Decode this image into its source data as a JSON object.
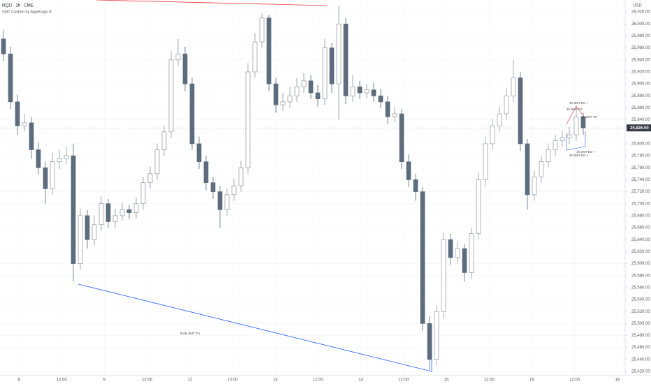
{
  "chart_data": {
    "type": "candlestick",
    "title": "NQ1! · 1h · CME",
    "subtitle": "SMT Custom by AlgoKings ®",
    "y_unit": "USD",
    "up_color": "#ffffff",
    "up_border": "#9598a1",
    "down_color": "#5d6d7e",
    "open": [
      25975,
      25950,
      25870,
      25830,
      25835,
      25790,
      25760,
      25725,
      25770,
      25775,
      25780,
      25600,
      25680,
      25640,
      25665,
      25700,
      25670,
      25680,
      25690,
      25685,
      25700,
      25735,
      25750,
      25790,
      25820,
      25940,
      25950,
      25900,
      25800,
      25770,
      25735,
      25720,
      25690,
      25715,
      25730,
      25760,
      25920,
      25970,
      26010,
      25900,
      25865,
      25870,
      25880,
      25895,
      25905,
      25885,
      25875,
      25960,
      25900,
      26000,
      25880,
      25895,
      25885,
      25890,
      25880,
      25870,
      25845,
      25850,
      25770,
      25740,
      25720,
      25500,
      25440,
      25520,
      25640,
      25610,
      25625,
      25585,
      25650,
      25740,
      25800,
      25830,
      25850,
      25880,
      25910,
      25800,
      25715,
      25745,
      25770,
      25790,
      25805,
      25810,
      25815,
      25845
    ],
    "high": [
      25990,
      25962,
      25882,
      25850,
      25845,
      25802,
      25770,
      25785,
      25790,
      25795,
      25800,
      25692,
      25690,
      25680,
      25712,
      25708,
      25692,
      25702,
      25698,
      25710,
      25745,
      25762,
      25800,
      25830,
      25955,
      25975,
      25962,
      25910,
      25812,
      25780,
      25745,
      25730,
      25725,
      25742,
      25772,
      25935,
      25985,
      26018,
      26015,
      25910,
      25885,
      25895,
      25910,
      25918,
      25915,
      25898,
      25975,
      25968,
      26030,
      26010,
      25915,
      25905,
      25900,
      25902,
      25892,
      25880,
      25862,
      25858,
      25782,
      25750,
      25728,
      25512,
      25530,
      25652,
      25650,
      25638,
      25632,
      25660,
      25752,
      25812,
      25842,
      25862,
      25893,
      25940,
      25920,
      25808,
      25755,
      25780,
      25800,
      25815,
      25822,
      25828,
      25860,
      25852
    ],
    "low": [
      25938,
      25858,
      25815,
      25820,
      25775,
      25748,
      25700,
      25715,
      25758,
      25765,
      25570,
      25590,
      25625,
      25630,
      25655,
      25660,
      25660,
      25672,
      25675,
      25676,
      25690,
      25725,
      25740,
      25780,
      25810,
      25930,
      25888,
      25790,
      25758,
      25722,
      25708,
      25660,
      25680,
      25705,
      25720,
      25750,
      25910,
      25960,
      25888,
      25852,
      25855,
      25860,
      25870,
      25885,
      25875,
      25862,
      25865,
      25885,
      25840,
      25866,
      25870,
      25875,
      25876,
      25870,
      25860,
      25833,
      25836,
      25758,
      25728,
      25705,
      25488,
      25422,
      25430,
      25508,
      25598,
      25600,
      25570,
      25575,
      25640,
      25730,
      25790,
      25820,
      25840,
      25870,
      25788,
      25690,
      25705,
      25735,
      25760,
      25780,
      25795,
      25800,
      25805,
      25815
    ],
    "close": [
      25950,
      25870,
      25830,
      25835,
      25790,
      25760,
      25725,
      25770,
      25775,
      25780,
      25600,
      25680,
      25640,
      25665,
      25700,
      25670,
      25680,
      25690,
      25685,
      25700,
      25735,
      25750,
      25790,
      25820,
      25940,
      25950,
      25900,
      25800,
      25770,
      25735,
      25720,
      25690,
      25715,
      25730,
      25760,
      25920,
      25970,
      26010,
      25900,
      25865,
      25870,
      25880,
      25895,
      25905,
      25885,
      25875,
      25960,
      25900,
      26000,
      25880,
      25895,
      25885,
      25890,
      25880,
      25870,
      25845,
      25850,
      25770,
      25740,
      25720,
      25500,
      25440,
      25520,
      25640,
      25610,
      25625,
      25585,
      25650,
      25740,
      25800,
      25830,
      25850,
      25880,
      25910,
      25800,
      25715,
      25745,
      25770,
      25790,
      25805,
      25810,
      25815,
      25845,
      25826.5
    ],
    "ylim": [
      25413,
      26040
    ],
    "yticks": [
      {
        "value": 25420,
        "label": "25,420.00"
      },
      {
        "value": 25440,
        "label": "25,440.00"
      },
      {
        "value": 25460,
        "label": "25,460.00"
      },
      {
        "value": 25480,
        "label": "25,480.00"
      },
      {
        "value": 25500,
        "label": "25,500.00"
      },
      {
        "value": 25520,
        "label": "25,520.00"
      },
      {
        "value": 25540,
        "label": "25,540.00"
      },
      {
        "value": 25560,
        "label": "25,560.00"
      },
      {
        "value": 25580,
        "label": "25,580.00"
      },
      {
        "value": 25600,
        "label": "25,600.00"
      },
      {
        "value": 25620,
        "label": "25,620.00"
      },
      {
        "value": 25640,
        "label": "25,640.00"
      },
      {
        "value": 25660,
        "label": "25,660.00"
      },
      {
        "value": 25680,
        "label": "25,680.00"
      },
      {
        "value": 25700,
        "label": "25,700.00"
      },
      {
        "value": 25720,
        "label": "25,720.00"
      },
      {
        "value": 25740,
        "label": "25,740.00"
      },
      {
        "value": 25760,
        "label": "25,760.00"
      },
      {
        "value": 25780,
        "label": "25,780.00"
      },
      {
        "value": 25800,
        "label": "25,800.00"
      },
      {
        "value": 25840,
        "label": "25,840.00"
      },
      {
        "value": 25860,
        "label": "25,860.00"
      },
      {
        "value": 25880,
        "label": "25,880.00"
      },
      {
        "value": 25900,
        "label": "25,900.00"
      },
      {
        "value": 25920,
        "label": "25,920.00"
      },
      {
        "value": 25940,
        "label": "25,940.00"
      },
      {
        "value": 25960,
        "label": "25,960.00"
      },
      {
        "value": 25980,
        "label": "25,980.00"
      },
      {
        "value": 26000,
        "label": "26,000.00"
      },
      {
        "value": 26020,
        "label": "26,020.00"
      }
    ],
    "last_price": {
      "value": 25826.5,
      "label": "25,826.50"
    },
    "xtick_labels": [
      "8",
      "12:00",
      "9",
      "12:00",
      "12",
      "12:00",
      "13",
      "12:00",
      "14",
      "12:00",
      "15",
      "12:00",
      "16",
      "12:00",
      "19"
    ],
    "annotations": [
      "Daily SMT TH",
      "4h SMT ES +",
      "1h SMT ES",
      "1h SMT TH",
      "1h SMT ES +",
      "4h SMT ES +"
    ]
  }
}
